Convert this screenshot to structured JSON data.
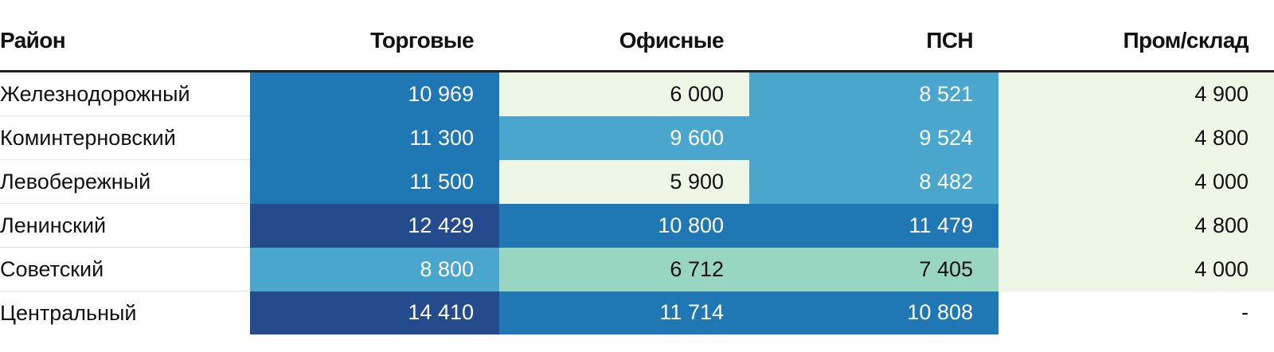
{
  "chart_data": {
    "type": "table",
    "columns": [
      "Район",
      "Торговые",
      "Офисные",
      "ПСН",
      "Пром/склад"
    ],
    "rows": [
      {
        "district": "Железнодорожный",
        "values": [
          "10 969",
          "6 000",
          "8 521",
          "4 900"
        ]
      },
      {
        "district": "Коминтерновский",
        "values": [
          "11 300",
          "9 600",
          "9 524",
          "4 800"
        ]
      },
      {
        "district": "Левобережный",
        "values": [
          "11 500",
          "5 900",
          "8 482",
          "4 000"
        ]
      },
      {
        "district": "Ленинский",
        "values": [
          "12 429",
          "10 800",
          "11 479",
          "4 800"
        ]
      },
      {
        "district": "Советский",
        "values": [
          "8 800",
          "6 712",
          "7 405",
          "4 000"
        ]
      },
      {
        "district": "Центральный",
        "values": [
          "14 410",
          "11 714",
          "10 808",
          "-"
        ]
      }
    ],
    "numeric_values": [
      [
        10969,
        6000,
        8521,
        4900
      ],
      [
        11300,
        9600,
        9524,
        4800
      ],
      [
        11500,
        5900,
        8482,
        4000
      ],
      [
        12429,
        10800,
        11479,
        4800
      ],
      [
        8800,
        6712,
        7405,
        4000
      ],
      [
        14410,
        11714,
        10808,
        null
      ]
    ],
    "cell_colors": [
      [
        "#1f78b4",
        "#eef7e6",
        "#4aa6cc",
        "#eef7e6"
      ],
      [
        "#1f78b4",
        "#4aa6cc",
        "#4aa6cc",
        "#eef7e6"
      ],
      [
        "#1f78b4",
        "#eef7e6",
        "#4aa6cc",
        "#eef7e6"
      ],
      [
        "#244b8c",
        "#1f78b4",
        "#1f78b4",
        "#eef7e6"
      ],
      [
        "#4aa6cc",
        "#98d6c1",
        "#98d6c1",
        "#eef7e6"
      ],
      [
        "#244b8c",
        "#1f78b4",
        "#1f78b4",
        "#ffffff"
      ]
    ],
    "text_on_dark": "#ffffff",
    "text_on_light": "#111111"
  }
}
